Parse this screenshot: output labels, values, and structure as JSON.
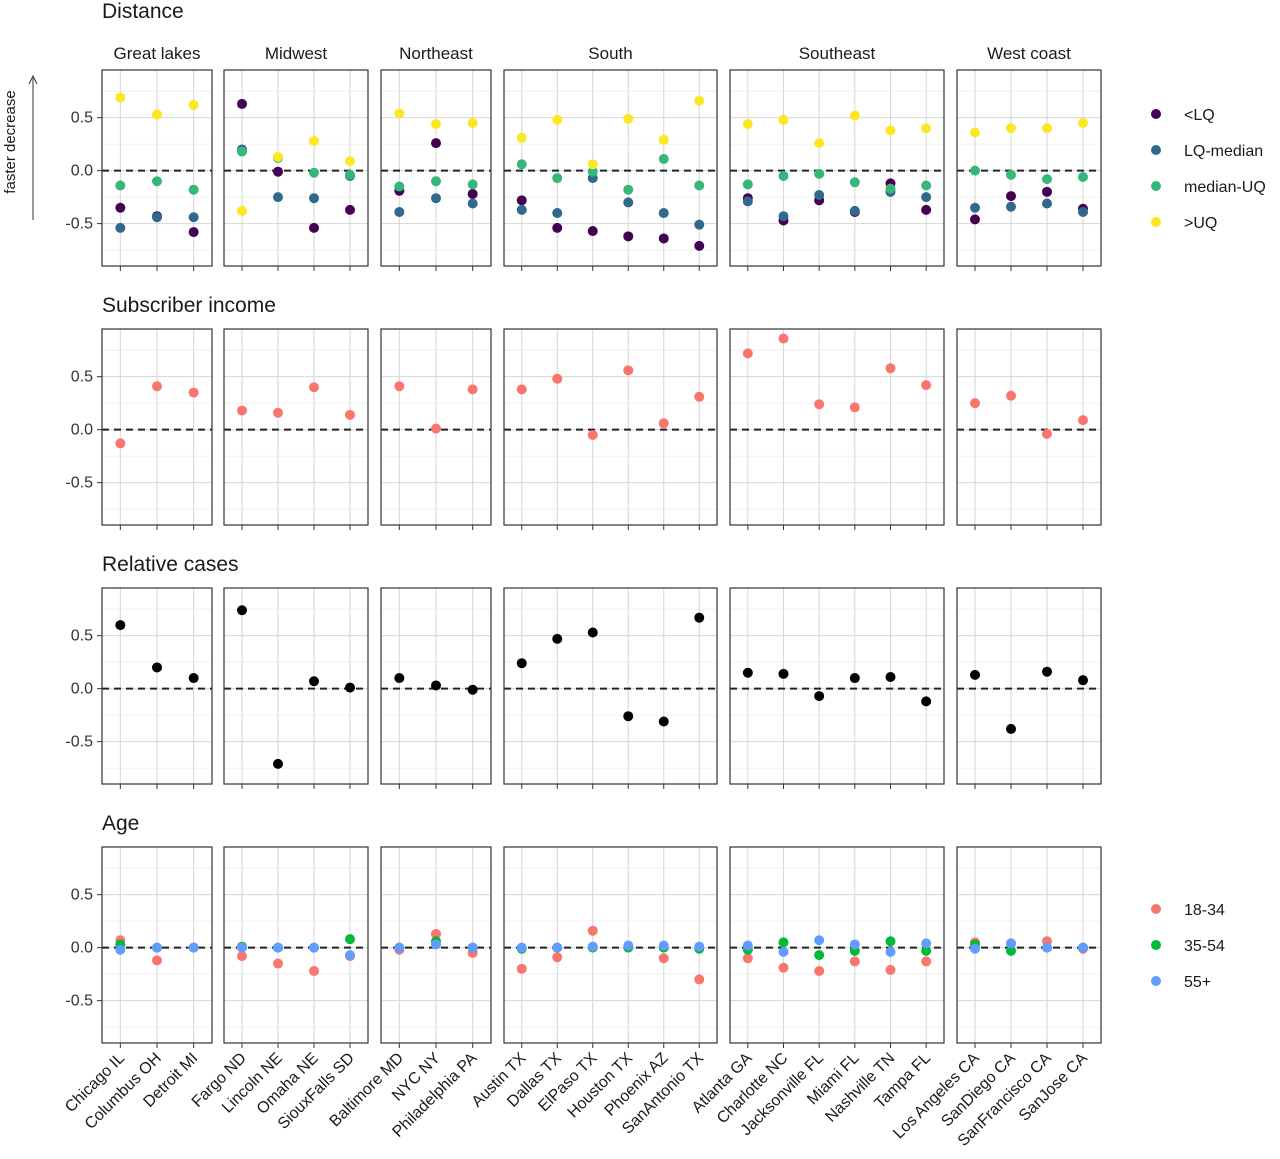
{
  "chart_data": {
    "type": "scatter",
    "y_axis_label": "faster decrease",
    "ylim": [
      -0.9,
      0.95
    ],
    "y_ticks": [
      0.5,
      0.0,
      -0.5
    ],
    "y_tick_labels": [
      "0.5",
      "0.0",
      "-0.5"
    ],
    "reference_line": 0,
    "grid": true,
    "regions": [
      {
        "name": "Great lakes",
        "cities": [
          "Chicago IL",
          "Columbus OH",
          "Detroit MI"
        ]
      },
      {
        "name": "Midwest",
        "cities": [
          "Fargo ND",
          "Lincoln NE",
          "Omaha NE",
          "SiouxFalls SD"
        ]
      },
      {
        "name": "Northeast",
        "cities": [
          "Baltimore MD",
          "NYC NY",
          "Philadelphia PA"
        ]
      },
      {
        "name": "South",
        "cities": [
          "Austin TX",
          "Dallas TX",
          "ElPaso TX",
          "Houston TX",
          "Phoenix AZ",
          "SanAntonio TX"
        ]
      },
      {
        "name": "Southeast",
        "cities": [
          "Atlanta GA",
          "Charlotte NC",
          "Jacksonville FL",
          "Miami FL",
          "Nashville TN",
          "Tampa FL"
        ]
      },
      {
        "name": "West coast",
        "cities": [
          "Los Angeles CA",
          "SanDiego CA",
          "SanFrancisco CA",
          "SanJose CA"
        ]
      }
    ],
    "panels": [
      {
        "title": "Distance",
        "legend": true,
        "series": [
          {
            "name": "<LQ",
            "color": "#440154",
            "values": [
              -0.35,
              -0.43,
              -0.58,
              0.63,
              -0.01,
              -0.54,
              -0.37,
              -0.19,
              0.26,
              -0.22,
              -0.28,
              -0.54,
              -0.57,
              -0.62,
              -0.64,
              -0.71,
              -0.26,
              -0.47,
              -0.28,
              -0.39,
              -0.12,
              -0.37,
              -0.46,
              -0.24,
              -0.2,
              -0.36
            ]
          },
          {
            "name": "LQ-median",
            "color": "#31688e",
            "values": [
              -0.54,
              -0.44,
              -0.44,
              0.2,
              -0.25,
              -0.26,
              -0.05,
              -0.39,
              -0.26,
              -0.31,
              -0.37,
              -0.4,
              -0.07,
              -0.3,
              -0.4,
              -0.51,
              -0.29,
              -0.43,
              -0.23,
              -0.38,
              -0.2,
              -0.25,
              -0.35,
              -0.34,
              -0.31,
              -0.39
            ]
          },
          {
            "name": "median-UQ",
            "color": "#35b779",
            "values": [
              -0.14,
              -0.1,
              -0.18,
              0.18,
              0.12,
              -0.02,
              -0.04,
              -0.15,
              -0.1,
              -0.13,
              0.06,
              -0.07,
              -0.01,
              -0.18,
              0.11,
              -0.14,
              -0.13,
              -0.05,
              -0.03,
              -0.11,
              -0.17,
              -0.14,
              0.0,
              -0.04,
              -0.08,
              -0.06
            ]
          },
          {
            "name": ">UQ",
            "color": "#fde725",
            "values": [
              0.69,
              0.53,
              0.62,
              -0.38,
              0.13,
              0.28,
              0.09,
              0.54,
              0.44,
              0.45,
              0.31,
              0.48,
              0.06,
              0.49,
              0.29,
              0.66,
              0.44,
              0.48,
              0.26,
              0.52,
              0.38,
              0.4,
              0.36,
              0.4,
              0.4,
              0.45
            ]
          }
        ]
      },
      {
        "title": "Subscriber income",
        "legend": false,
        "series": [
          {
            "name": "Subscriber income",
            "color": "#f8766d",
            "values": [
              -0.13,
              0.41,
              0.35,
              0.18,
              0.16,
              0.4,
              0.14,
              0.41,
              0.01,
              0.38,
              0.38,
              0.48,
              -0.05,
              0.56,
              0.06,
              0.31,
              0.72,
              0.86,
              0.24,
              0.21,
              0.58,
              0.42,
              0.25,
              0.32,
              -0.04,
              0.09
            ]
          }
        ]
      },
      {
        "title": "Relative cases",
        "legend": false,
        "series": [
          {
            "name": "Relative cases",
            "color": "#000000",
            "values": [
              0.6,
              0.2,
              0.1,
              0.74,
              -0.71,
              0.07,
              0.01,
              0.1,
              0.03,
              -0.01,
              0.24,
              0.47,
              0.53,
              -0.26,
              -0.31,
              0.67,
              0.15,
              0.14,
              -0.07,
              0.1,
              0.11,
              -0.12,
              0.13,
              -0.38,
              0.16,
              0.08
            ]
          }
        ]
      },
      {
        "title": "Age",
        "legend": true,
        "series": [
          {
            "name": "18-34",
            "color": "#f8766d",
            "values": [
              0.07,
              -0.12,
              0.0,
              -0.08,
              -0.15,
              -0.22,
              -0.08,
              -0.02,
              0.13,
              -0.05,
              -0.2,
              -0.09,
              0.16,
              0.01,
              -0.1,
              -0.3,
              -0.1,
              -0.19,
              -0.22,
              -0.13,
              -0.21,
              -0.13,
              0.05,
              0.04,
              0.06,
              -0.01
            ]
          },
          {
            "name": "35-54",
            "color": "#00ba38",
            "values": [
              0.03,
              0.0,
              0.0,
              0.01,
              0.0,
              0.0,
              0.08,
              0.0,
              0.06,
              0.0,
              -0.01,
              0.0,
              0.0,
              0.0,
              0.0,
              -0.01,
              -0.02,
              0.05,
              -0.07,
              -0.03,
              0.06,
              -0.03,
              0.03,
              -0.03,
              0.0,
              0.0
            ]
          },
          {
            "name": "55+",
            "color": "#619cff",
            "values": [
              -0.02,
              0.0,
              0.0,
              0.0,
              0.0,
              0.0,
              -0.07,
              0.0,
              0.03,
              0.0,
              0.0,
              0.0,
              0.01,
              0.02,
              0.02,
              0.01,
              0.02,
              -0.04,
              0.07,
              0.03,
              -0.04,
              0.04,
              -0.01,
              0.04,
              0.0,
              0.0
            ]
          }
        ]
      }
    ]
  }
}
